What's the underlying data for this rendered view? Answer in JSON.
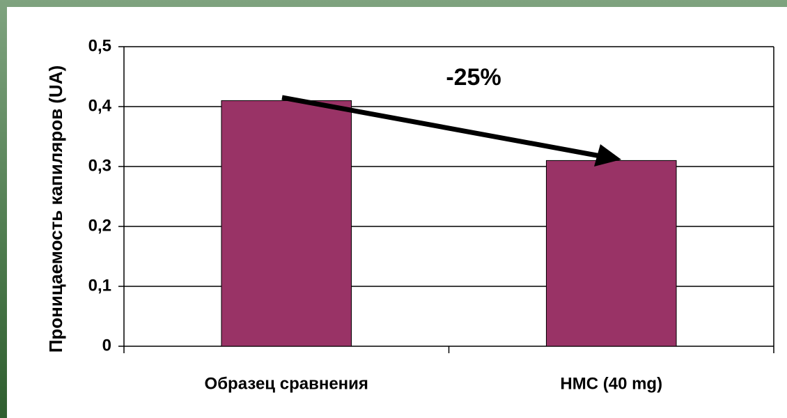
{
  "chart_data": {
    "type": "bar",
    "y_label": "Проницаемость капиляров (UA)",
    "annotation": "-25%",
    "categories": [
      "Образец сравнения",
      "HMC (40 mg)"
    ],
    "values": [
      0.41,
      0.31
    ],
    "color": "#993366",
    "ylim": [
      0,
      0.5
    ],
    "yticks": [
      0,
      {
        "value": 0.1,
        "label": "0,1"
      },
      {
        "value": 0.2,
        "label": "0,2"
      },
      {
        "value": 0.3,
        "label": "0,3"
      },
      {
        "value": 0.4,
        "label": "0,4"
      },
      {
        "value": 0.5,
        "label": "0,5"
      }
    ],
    "grid": true
  }
}
